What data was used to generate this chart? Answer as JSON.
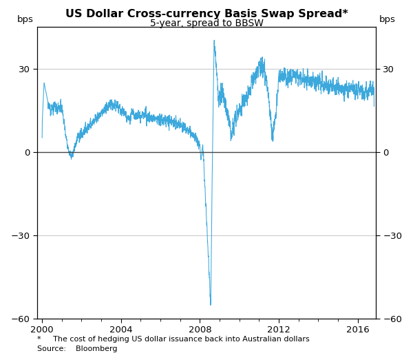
{
  "title": "US Dollar Cross-currency Basis Swap Spread*",
  "subtitle": "5-year, spread to BBSW",
  "ylabel_left": "bps",
  "ylabel_right": "bps",
  "ylim": [
    -60,
    45
  ],
  "yticks": [
    -60,
    -30,
    0,
    30
  ],
  "xlim_start": 1999.75,
  "xlim_end": 2016.92,
  "xticks": [
    2000,
    2004,
    2008,
    2012,
    2016
  ],
  "line_color": "#3ca8dc",
  "zero_line_color": "#444444",
  "grid_color": "#bbbbbb",
  "footnote1": "*     The cost of hedging US dollar issuance back into Australian dollars",
  "footnote2": "Source:    Bloomberg",
  "bg_color": "#ffffff",
  "line_width": 0.75
}
